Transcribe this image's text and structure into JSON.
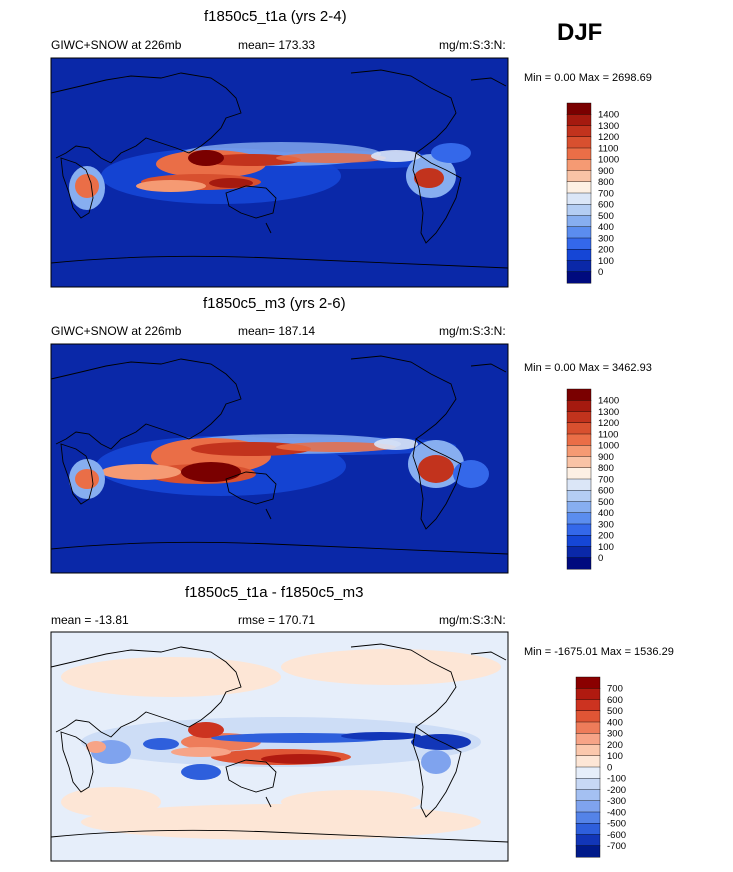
{
  "season": "DJF",
  "chart_data": [
    {
      "type": "heatmap",
      "title": "f1850c5_t1a (yrs 2-4)",
      "subtitle_left": "GIWC+SNOW at 226mb",
      "subtitle_center": "mean= 173.33",
      "units": "mg/m:S:3:N:",
      "min_max": "Min =   0.00 Max = 2698.69",
      "colorbar": {
        "levels": [
          "1400",
          "1300",
          "1200",
          "1100",
          "1000",
          "900",
          "800",
          "700",
          "600",
          "500",
          "400",
          "300",
          "200",
          "100",
          "0"
        ],
        "colors": [
          "#7a0000",
          "#a51a0f",
          "#c2331d",
          "#d8502f",
          "#ea6e47",
          "#f59a73",
          "#f9c3a6",
          "#fdf0e4",
          "#dbe6f7",
          "#b4cdf3",
          "#87aef0",
          "#5b8def",
          "#3468ea",
          "#1546d6",
          "#0a28a8",
          "#000a7e"
        ]
      }
    },
    {
      "type": "heatmap",
      "title": "f1850c5_m3 (yrs 2-6)",
      "subtitle_left": "GIWC+SNOW at 226mb",
      "subtitle_center": "mean= 187.14",
      "units": "mg/m:S:3:N:",
      "min_max": "Min =   0.00 Max = 3462.93",
      "colorbar": {
        "levels": [
          "1400",
          "1300",
          "1200",
          "1100",
          "1000",
          "900",
          "800",
          "700",
          "600",
          "500",
          "400",
          "300",
          "200",
          "100",
          "0"
        ],
        "colors": [
          "#7a0000",
          "#a51a0f",
          "#c2331d",
          "#d8502f",
          "#ea6e47",
          "#f59a73",
          "#f9c3a6",
          "#fdf0e4",
          "#dbe6f7",
          "#b4cdf3",
          "#87aef0",
          "#5b8def",
          "#3468ea",
          "#1546d6",
          "#0a28a8",
          "#000a7e"
        ]
      }
    },
    {
      "type": "heatmap",
      "title": "f1850c5_t1a - f1850c5_m3",
      "subtitle_left": "mean = -13.81",
      "subtitle_center": "rmse = 170.71",
      "units": "mg/m:S:3:N:",
      "min_max": "Min = -1675.01 Max = 1536.29",
      "colorbar": {
        "levels": [
          "700",
          "600",
          "500",
          "400",
          "300",
          "200",
          "100",
          "0",
          "-100",
          "-200",
          "-300",
          "-400",
          "-500",
          "-600",
          "-700"
        ],
        "colors": [
          "#8a0000",
          "#b01a10",
          "#cc3320",
          "#e05535",
          "#ee7c5a",
          "#f7a487",
          "#fbc8ad",
          "#fde6d6",
          "#e6eefa",
          "#c7d8f5",
          "#a4c0f2",
          "#7fa3ee",
          "#5483e8",
          "#2e5fdc",
          "#1236b8",
          "#001a8a"
        ]
      }
    }
  ]
}
